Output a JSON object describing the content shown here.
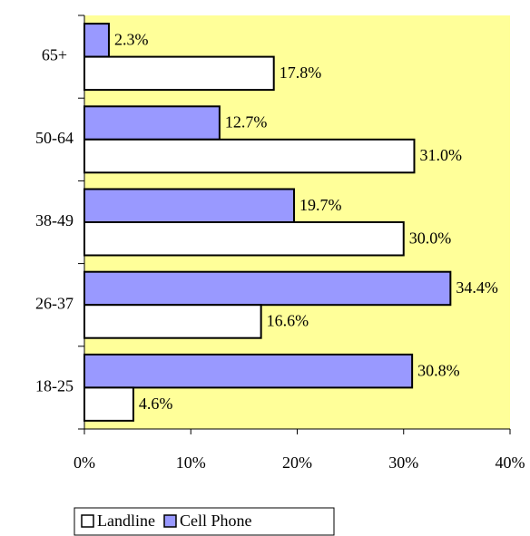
{
  "chart_data": {
    "type": "bar",
    "orientation": "horizontal",
    "categories": [
      "65+",
      "50-64",
      "38-49",
      "26-37",
      "18-25"
    ],
    "series": [
      {
        "name": "Cell Phone",
        "color": "#9999ff",
        "values": [
          2.3,
          12.7,
          19.7,
          34.4,
          30.8
        ],
        "value_labels": [
          "2.3%",
          "12.7%",
          "19.7%",
          "34.4%",
          "30.8%"
        ]
      },
      {
        "name": "Landline",
        "color": "#ffffff",
        "values": [
          17.8,
          31.0,
          30.0,
          16.6,
          4.6
        ],
        "value_labels": [
          "17.8%",
          "31.0%",
          "30.0%",
          "16.6%",
          "4.6%"
        ]
      }
    ],
    "xlim": [
      0,
      40
    ],
    "xticks": [
      {
        "value": 0,
        "label": "0%"
      },
      {
        "value": 10,
        "label": "10%"
      },
      {
        "value": 20,
        "label": "20%"
      },
      {
        "value": 30,
        "label": "30%"
      },
      {
        "value": 40,
        "label": "40%"
      }
    ],
    "plot_background": "#ffff99",
    "legend_order": [
      "Landline",
      "Cell Phone"
    ]
  }
}
